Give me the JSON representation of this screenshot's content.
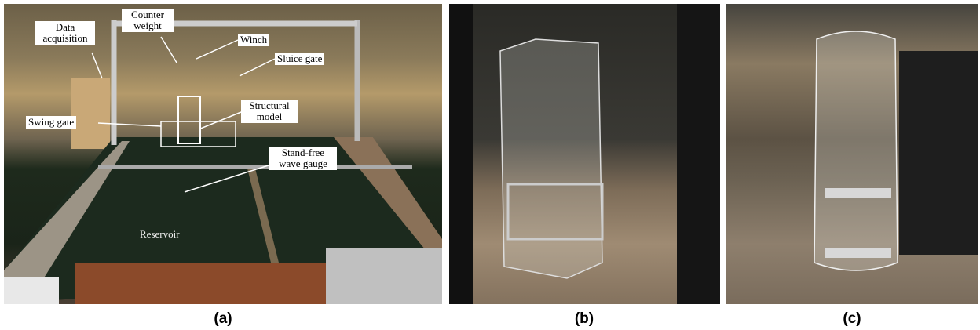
{
  "panels": [
    {
      "label": "(a)",
      "annotations": [
        "Data acquisition",
        "Counter weight",
        "Winch",
        "Sluice gate",
        "Structural model",
        "Swing gate",
        "Stand-free wave gauge",
        "Reservoir"
      ]
    },
    {
      "label": "(b)"
    },
    {
      "label": "(c)"
    }
  ]
}
